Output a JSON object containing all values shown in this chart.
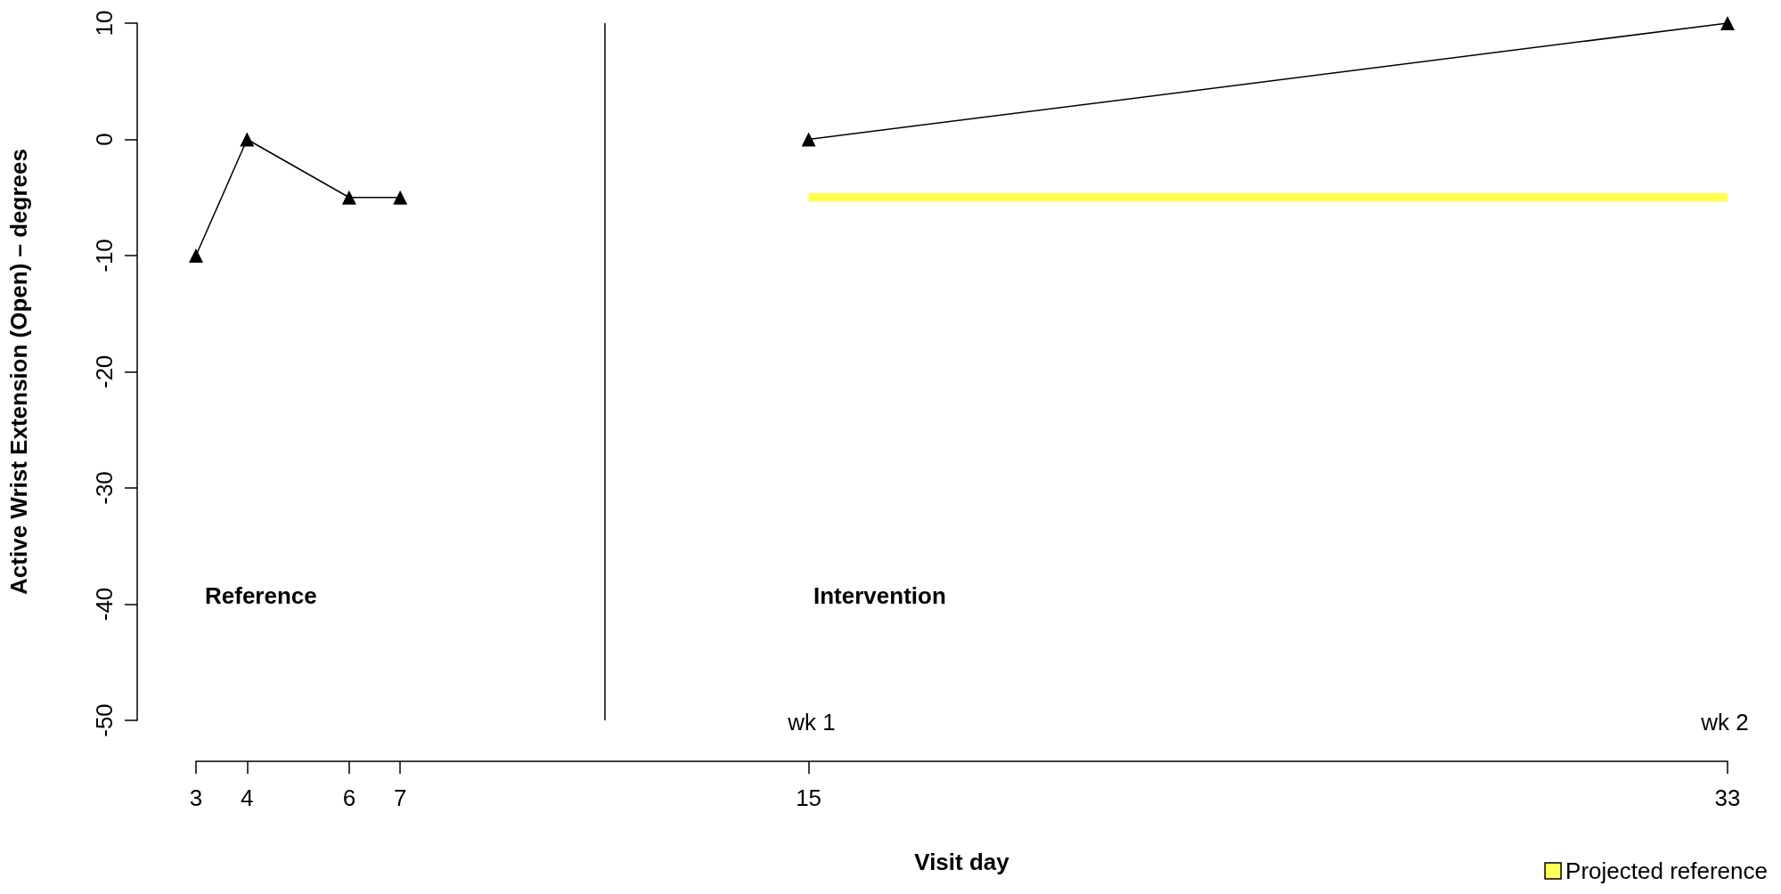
{
  "chart_data": {
    "type": "line",
    "xlabel": "Visit day",
    "ylabel": "Active Wrist Extension (Open) – degrees",
    "series": [
      {
        "color": "#000000",
        "values": [
          -10,
          0,
          -5,
          -5
        ],
        "x": [
          3,
          4,
          6,
          7
        ],
        "marker": "triangle",
        "line_style": "solid"
      },
      {
        "color": "#000000",
        "values": [
          0,
          10
        ],
        "x": [
          15,
          33
        ],
        "marker": "triangle",
        "line_style": "solid"
      },
      {
        "name": "Projected reference",
        "color": "#ffff55",
        "x": [
          15,
          33
        ],
        "values": [
          -5,
          -5
        ],
        "marker": "none",
        "line_style": "solid"
      }
    ],
    "xlim": [
      3,
      33
    ],
    "xticks": [
      3,
      4,
      6,
      7,
      15,
      33
    ],
    "ylim": [
      -50,
      10
    ],
    "yticks": [
      -50,
      -40,
      -30,
      -20,
      -10,
      0,
      10
    ],
    "ref_lines": [
      {
        "axis": "x",
        "value": 11,
        "color": "#000000"
      }
    ],
    "annotations": [
      "Reference",
      "Intervention",
      "wk 1",
      "wk 2"
    ],
    "grid": false,
    "legend": "bottom right"
  }
}
